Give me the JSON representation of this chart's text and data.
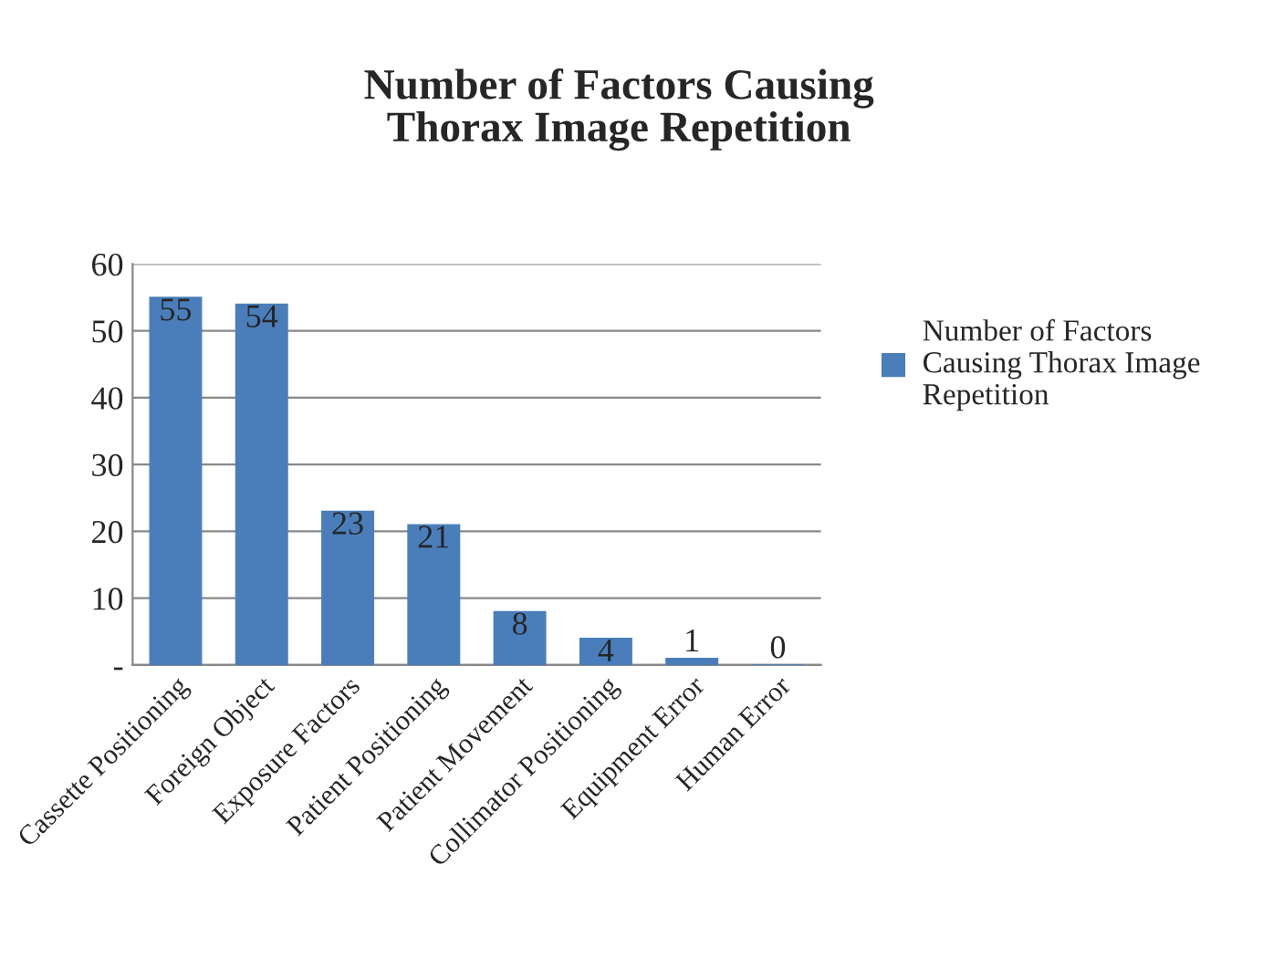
{
  "chart_data": {
    "type": "bar",
    "title": "Number of Factors Causing Thorax Image Repetition",
    "categories": [
      "Cassette Positioning",
      "Foreign Object",
      "Exposure Factors",
      "Patient Positioning",
      "Patient Movement",
      "Collimator Positioning",
      "Equipment Error",
      "Human Error"
    ],
    "series": [
      {
        "name": "Number of Factors Causing Thorax Image Repetition",
        "color": "#4a7ebb",
        "values": [
          55,
          54,
          23,
          21,
          8,
          4,
          1,
          0
        ]
      }
    ],
    "ylim": [
      0,
      60
    ],
    "yticks": [
      {
        "value": 0,
        "label": "-"
      },
      10,
      20,
      30,
      40,
      50,
      60
    ],
    "grid": "y",
    "legend": "right",
    "data_labels": true
  }
}
